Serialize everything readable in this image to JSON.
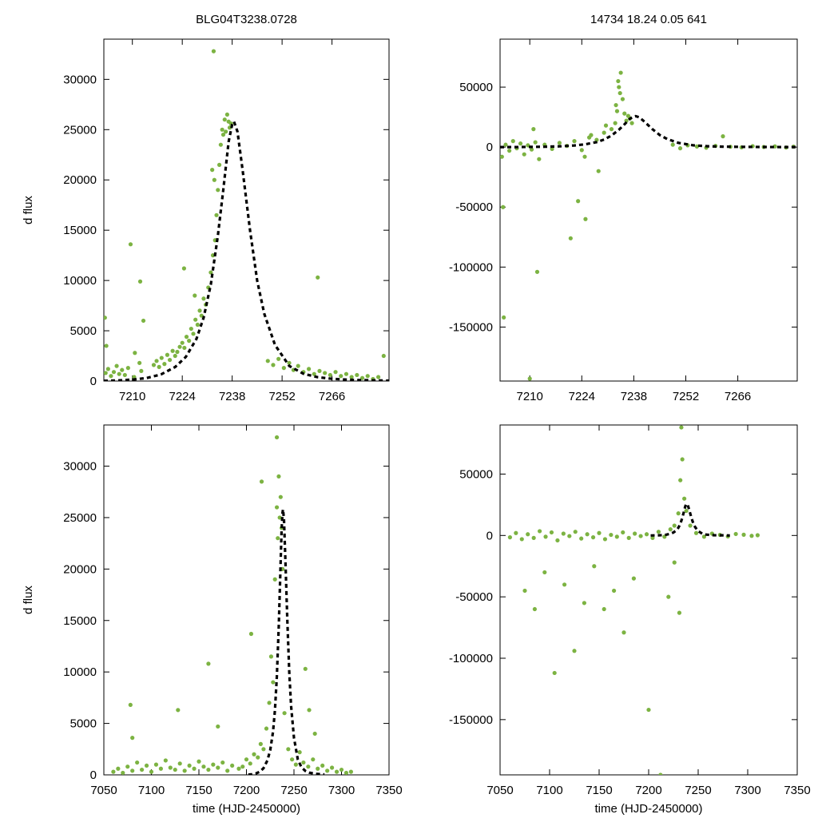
{
  "header": {
    "object_id": "BLG04T3238.0728",
    "stats": "14734   18.24   0.05   641"
  },
  "colors": {
    "points": "#7cb342",
    "model": "#000000",
    "axes": "#000000"
  },
  "chart_data": [
    {
      "type": "scatter",
      "panel": "top-left",
      "title": "BLG04T3238.0728",
      "xlabel": "",
      "ylabel": "d flux",
      "xlim": [
        7202,
        7282
      ],
      "ylim": [
        0,
        34000
      ],
      "xticks": [
        7210,
        7224,
        7238,
        7252,
        7266
      ],
      "yticks": [
        0,
        5000,
        10000,
        15000,
        20000,
        25000,
        30000
      ],
      "xtick_labels": [
        "7210",
        "7224",
        "7238",
        "7252",
        "7266"
      ],
      "ytick_labels": [
        "0",
        "5000",
        "10000",
        "15000",
        "20000",
        "25000",
        "30000"
      ],
      "series": [
        {
          "name": "data",
          "style": "points",
          "x": [
            7202.5,
            7203.2,
            7204.0,
            7204.8,
            7205.6,
            7206.3,
            7207.1,
            7207.9,
            7208.8,
            7210.5,
            7212.0,
            7212.5,
            7216.0,
            7216.8,
            7217.5,
            7218.2,
            7219.0,
            7219.8,
            7220.5,
            7221.3,
            7222.0,
            7222.6,
            7223.3,
            7224.0,
            7224.6,
            7225.2,
            7225.9,
            7226.5,
            7227.1,
            7227.7,
            7228.3,
            7228.9,
            7229.4,
            7230.0,
            7230.6,
            7231.3,
            7232.0,
            7232.6,
            7233.2,
            7233.6,
            7234.0,
            7234.4,
            7234.8,
            7235.2,
            7235.5,
            7235.9,
            7236.2,
            7236.6,
            7237.0,
            7237.3,
            7237.7,
            7232.4,
            7233.0,
            7209.5,
            7212.2,
            7213.1,
            7224.5,
            7227.5,
            7262.0,
            7202.3,
            7202.7,
            7210.7,
            7232.8,
            7248.0,
            7249.5,
            7251.0,
            7252.5,
            7254.0,
            7255.2,
            7256.5,
            7258.0,
            7259.5,
            7261.0,
            7262.5,
            7264.0,
            7265.5,
            7267.0,
            7268.5,
            7270.0,
            7271.5,
            7273.0,
            7274.5,
            7276.0,
            7277.5,
            7279.0,
            7280.5
          ],
          "y": [
            800,
            1200,
            500,
            900,
            1500,
            700,
            1100,
            600,
            1300,
            400,
            1800,
            1000,
            1600,
            2000,
            1400,
            2300,
            1700,
            2600,
            2100,
            3000,
            2500,
            2900,
            3400,
            3800,
            3300,
            4400,
            4000,
            5200,
            4700,
            6100,
            5600,
            7000,
            6500,
            8200,
            7600,
            9300,
            10800,
            12500,
            14000,
            16500,
            19000,
            21500,
            23500,
            25000,
            24500,
            26000,
            24800,
            26500,
            25800,
            25200,
            25600,
            21000,
            20000,
            13600,
            9900,
            6000,
            11200,
            8500,
            10300,
            6300,
            3500,
            2800,
            32800,
            2000,
            1600,
            2200,
            1300,
            1800,
            1100,
            1500,
            900,
            1200,
            700,
            1000,
            800,
            600,
            900,
            500,
            700,
            400,
            600,
            300,
            500,
            200,
            400,
            2500
          ]
        },
        {
          "name": "model",
          "style": "dashed",
          "x": [
            7202,
            7206,
            7210,
            7214,
            7218,
            7222,
            7225,
            7228,
            7230,
            7232,
            7234,
            7235.5,
            7237,
            7238,
            7238.5,
            7239.5,
            7241,
            7243,
            7245,
            7247,
            7250,
            7254,
            7258,
            7262,
            7266,
            7272,
            7278,
            7282
          ],
          "y": [
            20,
            60,
            140,
            300,
            650,
            1400,
            2400,
            4200,
            6300,
            9600,
            14500,
            19000,
            23800,
            25500,
            25800,
            24800,
            20800,
            15000,
            10000,
            6700,
            3600,
            1500,
            720,
            380,
            220,
            110,
            60,
            40
          ]
        }
      ]
    },
    {
      "type": "scatter",
      "panel": "top-right",
      "title": "14734   18.24   0.05   641",
      "xlabel": "",
      "ylabel": "",
      "xlim": [
        7202,
        7282
      ],
      "ylim": [
        -195000,
        90000
      ],
      "xticks": [
        7210,
        7224,
        7238,
        7252,
        7266
      ],
      "yticks": [
        -150000,
        -100000,
        -50000,
        0,
        50000
      ],
      "xtick_labels": [
        "7210",
        "7224",
        "7238",
        "7252",
        "7266"
      ],
      "ytick_labels": [
        "-150000",
        "-100000",
        "-50000",
        "0",
        "50000"
      ],
      "series": [
        {
          "name": "data",
          "style": "points",
          "x": [
            7202.5,
            7203.5,
            7204.5,
            7205.5,
            7206.5,
            7207.5,
            7208.5,
            7209.5,
            7210.5,
            7211.5,
            7212.5,
            7214.0,
            7216.0,
            7218.0,
            7220.0,
            7222.0,
            7224.0,
            7226.0,
            7228.0,
            7230.0,
            7232.0,
            7233.0,
            7233.5,
            7234.0,
            7234.5,
            7235.0,
            7235.5,
            7236.0,
            7236.5,
            7237.0,
            7237.5,
            7233.2,
            7233.8,
            7234.3,
            7223.0,
            7225.0,
            7228.5,
            7212.0,
            7203.0,
            7202.8,
            7210.0,
            7230.5,
            7248.5,
            7250.5,
            7252.5,
            7255.0,
            7257.5,
            7260.0,
            7262.0,
            7264.0,
            7267.0,
            7270.0,
            7273.0,
            7276.0,
            7279.0,
            7281.0,
            7221.0,
            7224.8,
            7226.5,
            7211.0
          ],
          "y": [
            -8000,
            2000,
            -3000,
            5000,
            -1000,
            3000,
            -6000,
            1500,
            -2000,
            4000,
            -10000,
            2000,
            -1500,
            3500,
            1000,
            5000,
            -2500,
            8000,
            6000,
            12000,
            15000,
            20000,
            30000,
            50000,
            62000,
            40000,
            28000,
            22000,
            26000,
            24000,
            20000,
            35000,
            55000,
            45000,
            -45000,
            -60000,
            -20000,
            -104000,
            -142000,
            -50000,
            -193000,
            18000,
            2000,
            -1000,
            1500,
            500,
            -500,
            1000,
            9000,
            300,
            -200,
            800,
            100,
            600,
            -300,
            400,
            -76000,
            -8000,
            10000,
            15000
          ]
        },
        {
          "name": "model",
          "style": "dashed",
          "x": [
            7202,
            7206,
            7210,
            7214,
            7218,
            7222,
            7225,
            7228,
            7230,
            7232,
            7234,
            7235.5,
            7237,
            7238,
            7238.5,
            7239.5,
            7241,
            7243,
            7245,
            7247,
            7250,
            7254,
            7258,
            7262,
            7266,
            7272,
            7278,
            7282
          ],
          "y": [
            20,
            60,
            140,
            300,
            650,
            1400,
            2400,
            4200,
            6300,
            9600,
            14500,
            19000,
            23800,
            25500,
            25800,
            24800,
            20800,
            15000,
            10000,
            6700,
            3600,
            1500,
            720,
            380,
            220,
            110,
            60,
            40
          ]
        }
      ]
    },
    {
      "type": "scatter",
      "panel": "bottom-left",
      "title": "",
      "xlabel": "time (HJD-2450000)",
      "ylabel": "d flux",
      "xlim": [
        7050,
        7350
      ],
      "ylim": [
        0,
        34000
      ],
      "xticks": [
        7050,
        7100,
        7150,
        7200,
        7250,
        7300,
        7350
      ],
      "yticks": [
        0,
        5000,
        10000,
        15000,
        20000,
        25000,
        30000
      ],
      "xtick_labels": [
        "7050",
        "7100",
        "7150",
        "7200",
        "7250",
        "7300",
        "7350"
      ],
      "ytick_labels": [
        "0",
        "5000",
        "10000",
        "15000",
        "20000",
        "25000",
        "30000"
      ],
      "series": [
        {
          "name": "data",
          "style": "points",
          "x": [
            7060,
            7065,
            7070,
            7075,
            7080,
            7085,
            7090,
            7095,
            7100,
            7105,
            7110,
            7115,
            7120,
            7125,
            7130,
            7135,
            7140,
            7145,
            7150,
            7155,
            7160,
            7165,
            7170,
            7175,
            7180,
            7185,
            7192,
            7196,
            7200,
            7204,
            7208,
            7212,
            7215,
            7218,
            7221,
            7224,
            7226,
            7228,
            7230,
            7232,
            7233,
            7234,
            7235,
            7236,
            7237,
            7238,
            7240,
            7244,
            7248,
            7252,
            7256,
            7260,
            7265,
            7270,
            7275,
            7280,
            7285,
            7290,
            7295,
            7300,
            7305,
            7310,
            7078,
            7080,
            7128,
            7160,
            7170,
            7205,
            7216,
            7232,
            7262,
            7266,
            7272
          ],
          "y": [
            300,
            600,
            200,
            800,
            400,
            1200,
            500,
            900,
            300,
            1000,
            600,
            1400,
            700,
            500,
            1100,
            400,
            900,
            600,
            1300,
            800,
            500,
            1000,
            700,
            1200,
            400,
            900,
            600,
            800,
            1500,
            1100,
            2000,
            1700,
            3000,
            2500,
            4500,
            7000,
            11500,
            9000,
            19000,
            26000,
            23000,
            29000,
            25000,
            27000,
            24000,
            20000,
            6000,
            2500,
            1500,
            1000,
            2200,
            1200,
            800,
            1500,
            600,
            900,
            400,
            700,
            300,
            500,
            200,
            300,
            6800,
            3600,
            6300,
            10800,
            4700,
            13700,
            28500,
            32800,
            10300,
            6300,
            4000
          ]
        },
        {
          "name": "model",
          "style": "dashed",
          "x": [
            7202,
            7206,
            7210,
            7214,
            7218,
            7222,
            7225,
            7228,
            7230,
            7232,
            7234,
            7235.5,
            7237,
            7238,
            7238.5,
            7239.5,
            7241,
            7243,
            7245,
            7247,
            7250,
            7254,
            7258,
            7262,
            7266,
            7272,
            7278,
            7282
          ],
          "y": [
            20,
            60,
            140,
            300,
            650,
            1400,
            2400,
            4200,
            6300,
            9600,
            14500,
            19000,
            23800,
            25500,
            25800,
            24800,
            20800,
            15000,
            10000,
            6700,
            3600,
            1500,
            720,
            380,
            220,
            110,
            60,
            40
          ]
        }
      ]
    },
    {
      "type": "scatter",
      "panel": "bottom-right",
      "title": "",
      "xlabel": "time (HJD-2450000)",
      "ylabel": "",
      "xlim": [
        7050,
        7350
      ],
      "ylim": [
        -195000,
        90000
      ],
      "xticks": [
        7050,
        7100,
        7150,
        7200,
        7250,
        7300,
        7350
      ],
      "yticks": [
        -150000,
        -100000,
        -50000,
        0,
        50000
      ],
      "xtick_labels": [
        "7050",
        "7100",
        "7150",
        "7200",
        "7250",
        "7300",
        "7350"
      ],
      "ytick_labels": [
        "-150000",
        "-100000",
        "-50000",
        "0",
        "50000"
      ],
      "series": [
        {
          "name": "data",
          "style": "points",
          "x": [
            7060,
            7066,
            7072,
            7078,
            7084,
            7090,
            7096,
            7102,
            7108,
            7114,
            7120,
            7126,
            7132,
            7138,
            7144,
            7150,
            7156,
            7162,
            7168,
            7174,
            7180,
            7186,
            7192,
            7198,
            7204,
            7210,
            7216,
            7222,
            7226,
            7230,
            7232,
            7234,
            7236,
            7238,
            7242,
            7248,
            7256,
            7264,
            7272,
            7280,
            7288,
            7296,
            7304,
            7310,
            7075,
            7085,
            7095,
            7105,
            7115,
            7125,
            7135,
            7145,
            7155,
            7165,
            7175,
            7185,
            7200,
            7212,
            7220,
            7226,
            7231,
            7233
          ],
          "y": [
            -1500,
            2000,
            -3000,
            1000,
            -2000,
            3500,
            -1000,
            2500,
            -4000,
            1500,
            -500,
            3000,
            -2500,
            1000,
            -1500,
            2000,
            -3000,
            500,
            -1000,
            2500,
            -2000,
            1500,
            -500,
            1000,
            -2000,
            3000,
            -1000,
            5000,
            8000,
            18000,
            45000,
            62000,
            30000,
            20000,
            8000,
            2000,
            -1000,
            1500,
            500,
            -800,
            1200,
            600,
            -300,
            200,
            -45000,
            -60000,
            -30000,
            -112000,
            -40000,
            -94000,
            -55000,
            -25000,
            -60000,
            -45000,
            -79000,
            -35000,
            -142000,
            -195000,
            -50000,
            -22000,
            -63000,
            88000
          ]
        },
        {
          "name": "model",
          "style": "dashed",
          "x": [
            7202,
            7206,
            7210,
            7214,
            7218,
            7222,
            7225,
            7228,
            7230,
            7232,
            7234,
            7235.5,
            7237,
            7238,
            7238.5,
            7239.5,
            7241,
            7243,
            7245,
            7247,
            7250,
            7254,
            7258,
            7262,
            7266,
            7272,
            7278,
            7282
          ],
          "y": [
            20,
            60,
            140,
            300,
            650,
            1400,
            2400,
            4200,
            6300,
            9600,
            14500,
            19000,
            23800,
            25500,
            25800,
            24800,
            20800,
            15000,
            10000,
            6700,
            3600,
            1500,
            720,
            380,
            220,
            110,
            60,
            40
          ]
        }
      ]
    }
  ]
}
